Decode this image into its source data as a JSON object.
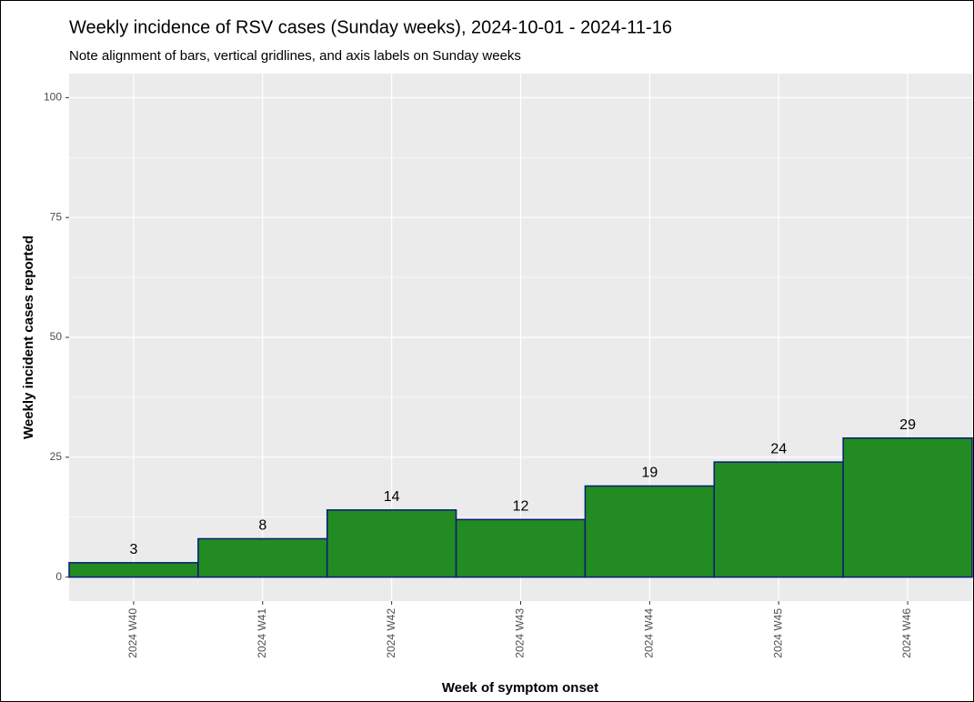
{
  "chart_data": {
    "type": "bar",
    "title": "Weekly incidence of RSV cases (Sunday weeks), 2024-10-01 - 2024-11-16",
    "subtitle": "Note alignment of bars, vertical gridlines, and axis labels on Sunday weeks",
    "x_label": "Week of symptom onset",
    "y_label": "Weekly incident cases reported",
    "categories": [
      "2024 W40",
      "2024 W41",
      "2024 W42",
      "2024 W43",
      "2024 W44",
      "2024 W45",
      "2024 W46"
    ],
    "values": [
      3,
      8,
      14,
      12,
      19,
      24,
      29
    ],
    "color": "#228b22",
    "edge_color": "#0a1a7a",
    "ylim": [
      -5,
      105
    ],
    "yticks": [
      0,
      25,
      50,
      75,
      100
    ],
    "grid": true
  }
}
